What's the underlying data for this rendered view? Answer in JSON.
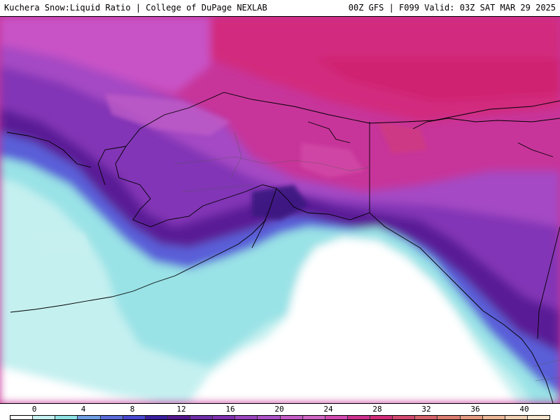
{
  "header": {
    "title_left": "Kuchera Snow:Liquid Ratio | College of DuPage NEXLAB",
    "title_right": "00Z GFS | F099 Valid: 03Z SAT MAR 29 2025"
  },
  "colorbar": {
    "tick_labels": [
      "0",
      "4",
      "8",
      "12",
      "16",
      "20",
      "24",
      "28",
      "32",
      "36",
      "40"
    ],
    "colors": [
      "#ffffff",
      "#c6f1f1",
      "#8fe3e6",
      "#6f9ee3",
      "#5a6ddb",
      "#4848d0",
      "#3a1ea0",
      "#55178f",
      "#6e2eaa",
      "#8030b0",
      "#9a44c0",
      "#ad52c8",
      "#c55cc8",
      "#d065c4",
      "#d44ab0",
      "#cc2f90",
      "#d22c7a",
      "#d2476e",
      "#d6626a",
      "#dc7c70",
      "#e49a80",
      "#eab696",
      "#f0cfb2",
      "#f6e4cc"
    ]
  },
  "map": {
    "region": "Alaska / Gulf of Alaska / NE Pacific",
    "colors": {
      "ocean_white": "#ffffff",
      "cyan_light": "#c6f1f1",
      "cyan": "#9be4e6",
      "blue": "#6e82dc",
      "indigo": "#4a3bc0",
      "purple_dark": "#5a1690",
      "purple": "#8a3cbc",
      "violet": "#b452c8",
      "magenta_light": "#d46cd0",
      "magenta": "#d2459e",
      "crimson": "#cc2c7c",
      "border": "#000000"
    }
  }
}
